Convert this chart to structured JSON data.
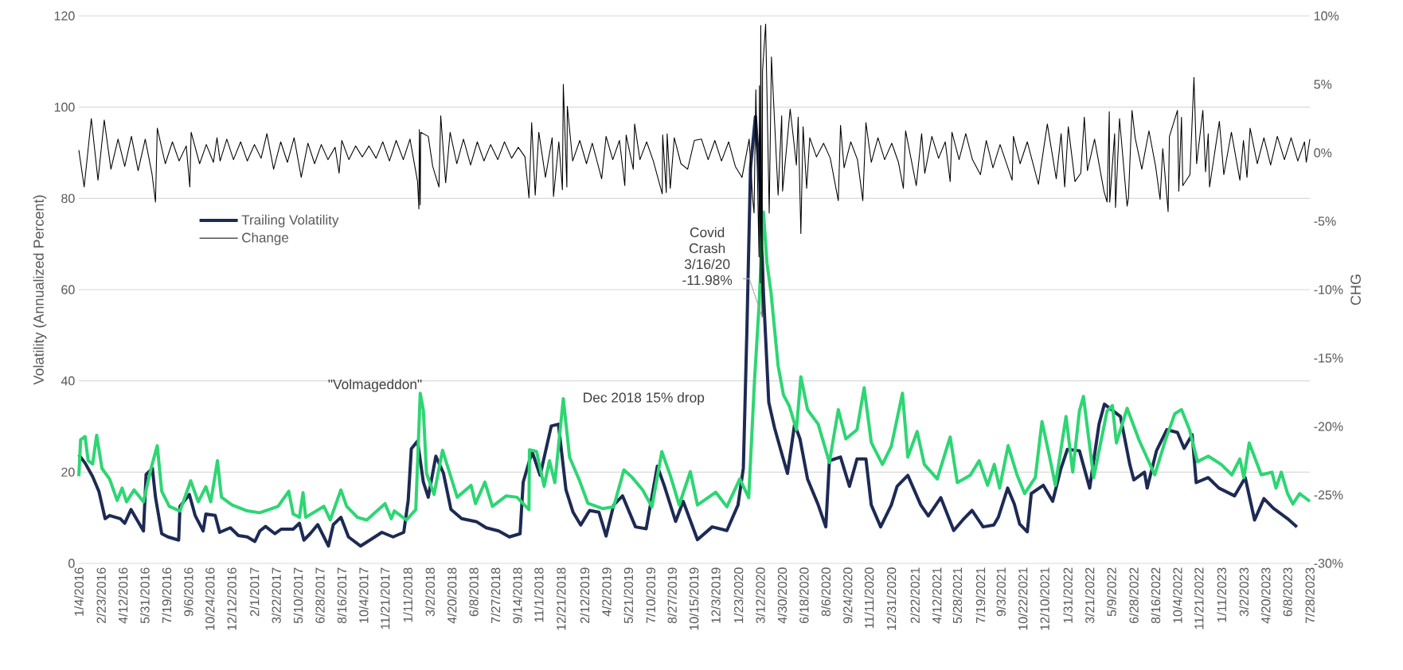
{
  "chart_data": {
    "type": "line",
    "ylabel": "Volatility (Annualized Percent)",
    "y2label": "CHG",
    "xlim": [
      "2016-01-04",
      "2023-07-28"
    ],
    "xticks": [
      {
        "value": "2016-01-04",
        "label": "1/4/2016"
      },
      {
        "value": "2016-02-23",
        "label": "2/23/2016"
      },
      {
        "value": "2016-04-12",
        "label": "4/12/2016"
      },
      {
        "value": "2016-05-31",
        "label": "5/31/2016"
      },
      {
        "value": "2016-07-19",
        "label": "7/19/2016"
      },
      {
        "value": "2016-09-06",
        "label": "9/6/2016"
      },
      {
        "value": "2016-10-24",
        "label": "10/24/2016"
      },
      {
        "value": "2016-12-12",
        "label": "12/12/2016"
      },
      {
        "value": "2017-02-01",
        "label": "2/1/2017"
      },
      {
        "value": "2017-03-22",
        "label": "3/22/2017"
      },
      {
        "value": "2017-05-10",
        "label": "5/10/2017"
      },
      {
        "value": "2017-06-28",
        "label": "6/28/2017"
      },
      {
        "value": "2017-08-16",
        "label": "8/16/2017"
      },
      {
        "value": "2017-10-04",
        "label": "10/4/2017"
      },
      {
        "value": "2017-11-21",
        "label": "11/21/2017"
      },
      {
        "value": "2018-01-11",
        "label": "1/11/2018"
      },
      {
        "value": "2018-03-02",
        "label": "3/2/2018"
      },
      {
        "value": "2018-04-20",
        "label": "4/20/2018"
      },
      {
        "value": "2018-06-08",
        "label": "6/8/2018"
      },
      {
        "value": "2018-07-27",
        "label": "7/27/2018"
      },
      {
        "value": "2018-09-14",
        "label": "9/14/2018"
      },
      {
        "value": "2018-11-01",
        "label": "11/1/2018"
      },
      {
        "value": "2018-12-21",
        "label": "12/21/2018"
      },
      {
        "value": "2019-02-12",
        "label": "2/12/2019"
      },
      {
        "value": "2019-04-02",
        "label": "4/2/2019"
      },
      {
        "value": "2019-05-21",
        "label": "5/21/2019"
      },
      {
        "value": "2019-07-10",
        "label": "7/10/2019"
      },
      {
        "value": "2019-08-27",
        "label": "8/27/2019"
      },
      {
        "value": "2019-10-15",
        "label": "10/15/2019"
      },
      {
        "value": "2019-12-03",
        "label": "12/3/2019"
      },
      {
        "value": "2020-01-23",
        "label": "1/23/2020"
      },
      {
        "value": "2020-03-12",
        "label": "3/12/2020"
      },
      {
        "value": "2020-04-30",
        "label": "4/30/2020"
      },
      {
        "value": "2020-06-18",
        "label": "6/18/2020"
      },
      {
        "value": "2020-08-06",
        "label": "8/6/2020"
      },
      {
        "value": "2020-09-24",
        "label": "9/24/2020"
      },
      {
        "value": "2020-11-11",
        "label": "11/11/2020"
      },
      {
        "value": "2020-12-31",
        "label": "12/31/2020"
      },
      {
        "value": "2021-02-22",
        "label": "2/22/2021"
      },
      {
        "value": "2021-04-12",
        "label": "4/12/2021"
      },
      {
        "value": "2021-05-28",
        "label": "5/28/2021"
      },
      {
        "value": "2021-07-19",
        "label": "7/19/2021"
      },
      {
        "value": "2021-09-03",
        "label": "9/3/2021"
      },
      {
        "value": "2021-10-22",
        "label": "10/22/2021"
      },
      {
        "value": "2021-12-10",
        "label": "12/10/2021"
      },
      {
        "value": "2022-01-31",
        "label": "1/31/2022"
      },
      {
        "value": "2022-03-21",
        "label": "3/21/2022"
      },
      {
        "value": "2022-05-09",
        "label": "5/9/2022"
      },
      {
        "value": "2022-06-28",
        "label": "6/28/2022"
      },
      {
        "value": "2022-08-16",
        "label": "8/16/2022"
      },
      {
        "value": "2022-10-04",
        "label": "10/4/2022"
      },
      {
        "value": "2022-11-21",
        "label": "11/21/2022"
      },
      {
        "value": "2023-01-11",
        "label": "1/11/2023"
      },
      {
        "value": "2023-03-02",
        "label": "3/2/2023"
      },
      {
        "value": "2023-04-20",
        "label": "4/20/2023"
      },
      {
        "value": "2023-06-08",
        "label": "6/8/2023"
      },
      {
        "value": "2023-07-28",
        "label": "7/28/2023"
      }
    ],
    "ylim": [
      0,
      120
    ],
    "yticks": [
      0,
      20,
      40,
      60,
      80,
      100,
      120
    ],
    "y2lim": [
      -30,
      10
    ],
    "y2ticks": [
      {
        "value": -30,
        "label": "-30%"
      },
      {
        "value": -25,
        "label": "-25%"
      },
      {
        "value": -20,
        "label": "-20%"
      },
      {
        "value": -15,
        "label": "-15%"
      },
      {
        "value": -10,
        "label": "-10%"
      },
      {
        "value": -5,
        "label": "-5%"
      },
      {
        "value": 0,
        "label": "0%"
      },
      {
        "value": 5,
        "label": "5%"
      },
      {
        "value": 10,
        "label": "10%"
      }
    ],
    "grid": "y",
    "legend": "left",
    "annotations": [
      {
        "text": "\"Volmageddon\"",
        "x": "2018-02-08",
        "y": 37.3
      },
      {
        "text": "Dec 2018 15% drop",
        "x": "2018-12-26",
        "y": 36.1
      },
      {
        "text": "Covid Crash 3/16/20 -11.98%",
        "x": "2020-03-16",
        "y": 54
      }
    ],
    "series": [
      {
        "name": "Trailing Volatility",
        "color": "#1d2a54",
        "x": [
          "2016-01-04",
          "2016-01-18",
          "2016-02-04",
          "2016-02-18",
          "2016-03-03",
          "2016-03-13",
          "2016-04-06",
          "2016-04-16",
          "2016-04-30",
          "2016-05-28",
          "2016-06-03",
          "2016-06-17",
          "2016-06-24",
          "2016-07-08",
          "2016-07-22",
          "2016-08-15",
          "2016-08-18",
          "2016-09-08",
          "2016-09-21",
          "2016-10-09",
          "2016-10-15",
          "2016-11-05",
          "2016-11-15",
          "2016-12-09",
          "2016-12-27",
          "2017-01-16",
          "2017-02-02",
          "2017-02-13",
          "2017-02-26",
          "2017-03-19",
          "2017-04-02",
          "2017-04-29",
          "2017-05-13",
          "2017-05-23",
          "2017-06-06",
          "2017-06-23",
          "2017-07-17",
          "2017-07-28",
          "2017-08-14",
          "2017-08-31",
          "2017-09-27",
          "2017-10-18",
          "2017-11-14",
          "2017-12-09",
          "2018-01-02",
          "2018-01-12",
          "2018-01-19",
          "2018-02-02",
          "2018-02-15",
          "2018-02-26",
          "2018-03-15",
          "2018-04-01",
          "2018-04-18",
          "2018-05-12",
          "2018-06-15",
          "2018-07-06",
          "2018-08-03",
          "2018-08-27",
          "2018-09-20",
          "2018-09-27",
          "2018-10-17",
          "2018-11-04",
          "2018-11-29",
          "2018-12-15",
          "2019-01-01",
          "2019-01-17",
          "2019-02-03",
          "2019-02-23",
          "2019-03-16",
          "2019-04-01",
          "2019-04-18",
          "2019-05-08",
          "2019-06-06",
          "2019-06-30",
          "2019-07-25",
          "2019-08-10",
          "2019-09-04",
          "2019-09-21",
          "2019-10-23",
          "2019-11-25",
          "2019-12-28",
          "2020-01-22",
          "2020-02-03",
          "2020-02-11",
          "2020-02-19",
          "2020-03-01",
          "2020-03-11",
          "2020-03-19",
          "2020-03-31",
          "2020-04-13",
          "2020-04-29",
          "2020-05-12",
          "2020-05-28",
          "2020-06-09",
          "2020-06-26",
          "2020-07-20",
          "2020-08-06",
          "2020-08-14",
          "2020-09-08",
          "2020-09-28",
          "2020-10-15",
          "2020-11-04",
          "2020-11-16",
          "2020-12-07",
          "2020-12-31",
          "2021-01-13",
          "2021-02-06",
          "2021-03-07",
          "2021-03-24",
          "2021-04-21",
          "2021-05-20",
          "2021-06-10",
          "2021-06-30",
          "2021-07-25",
          "2021-08-18",
          "2021-08-28",
          "2021-09-18",
          "2021-10-03",
          "2021-10-15",
          "2021-11-01",
          "2021-11-10",
          "2021-12-07",
          "2021-12-28",
          "2022-01-15",
          "2022-01-30",
          "2022-02-26",
          "2022-03-21",
          "2022-04-11",
          "2022-04-23",
          "2022-05-05",
          "2022-05-29",
          "2022-06-19",
          "2022-06-28",
          "2022-07-22",
          "2022-07-28",
          "2022-08-18",
          "2022-09-10",
          "2022-10-04",
          "2022-10-19",
          "2022-11-06",
          "2022-11-15",
          "2022-12-12",
          "2023-01-05",
          "2023-02-09",
          "2023-03-05",
          "2023-03-26",
          "2023-04-16",
          "2023-05-07",
          "2023-06-08",
          "2023-06-29"
        ],
        "values": [
          23.8,
          22,
          19,
          15.8,
          9.8,
          10.5,
          9.8,
          8.8,
          11.8,
          7.1,
          19.5,
          20.8,
          14.5,
          6.5,
          5.8,
          5.1,
          12.5,
          15.1,
          10.5,
          7.1,
          10.8,
          10.5,
          6.8,
          7.8,
          6.1,
          5.8,
          4.8,
          7.1,
          8.1,
          6.5,
          7.5,
          7.5,
          8.8,
          5.1,
          6.5,
          8.5,
          3.8,
          8.5,
          10.1,
          5.8,
          3.8,
          5.1,
          6.8,
          5.8,
          6.8,
          13.8,
          25.1,
          26.8,
          17.8,
          14.5,
          23.5,
          19.8,
          11.8,
          9.8,
          9.1,
          7.8,
          7.1,
          5.8,
          6.5,
          17.8,
          24.5,
          19.3,
          30.1,
          30.5,
          16.1,
          11.2,
          8.4,
          11.6,
          11.2,
          6.0,
          12.8,
          14.8,
          8.0,
          7.6,
          21.3,
          16.9,
          9.2,
          13.6,
          5.2,
          8.0,
          7.2,
          12.8,
          20.9,
          51.4,
          86.7,
          97.9,
          83.5,
          59.4,
          35.3,
          29.7,
          24.1,
          19.7,
          30.5,
          27.3,
          18.5,
          12.8,
          8.0,
          22.5,
          23.3,
          16.9,
          22.9,
          22.9,
          12.8,
          8.0,
          12.8,
          16.9,
          19.3,
          12.8,
          10.4,
          14.4,
          7.2,
          9.6,
          11.6,
          8.0,
          8.4,
          10.1,
          16.5,
          13.0,
          8.6,
          6.9,
          15.3,
          17.1,
          13.6,
          20.6,
          25.0,
          24.7,
          16.5,
          30.5,
          34.9,
          34.0,
          32.2,
          21.7,
          18.3,
          20.0,
          16.5,
          24.7,
          29.3,
          28.7,
          25.2,
          28.2,
          17.7,
          18.8,
          16.5,
          14.8,
          18.8,
          9.5,
          14.2,
          12.1,
          9.8,
          8.0
        ]
      },
      {
        "color": "#2dd673",
        "x": [
          "2016-01-04",
          "2016-01-08",
          "2016-01-18",
          "2016-01-25",
          "2016-02-04",
          "2016-02-13",
          "2016-02-25",
          "2016-03-13",
          "2016-03-30",
          "2016-04-10",
          "2016-04-20",
          "2016-05-07",
          "2016-05-28",
          "2016-06-14",
          "2016-06-28",
          "2016-07-08",
          "2016-07-25",
          "2016-08-18",
          "2016-09-11",
          "2016-09-28",
          "2016-10-15",
          "2016-10-26",
          "2016-11-10",
          "2016-11-19",
          "2016-12-13",
          "2017-01-16",
          "2017-02-13",
          "2017-03-26",
          "2017-04-19",
          "2017-04-29",
          "2017-05-13",
          "2017-05-21",
          "2017-05-27",
          "2017-07-07",
          "2017-07-21",
          "2017-08-14",
          "2017-08-27",
          "2017-09-20",
          "2017-10-11",
          "2017-11-21",
          "2017-12-05",
          "2017-12-12",
          "2018-01-08",
          "2018-01-29",
          "2018-02-08",
          "2018-02-15",
          "2018-02-22",
          "2018-03-11",
          "2018-03-30",
          "2018-04-15",
          "2018-05-02",
          "2018-06-02",
          "2018-06-12",
          "2018-07-03",
          "2018-07-20",
          "2018-08-20",
          "2018-09-13",
          "2018-10-10",
          "2018-10-11",
          "2018-10-27",
          "2018-11-13",
          "2018-11-25",
          "2018-12-07",
          "2018-12-26",
          "2019-01-09",
          "2019-01-30",
          "2019-02-19",
          "2019-03-24",
          "2019-04-18",
          "2019-05-11",
          "2019-05-29",
          "2019-06-22",
          "2019-07-13",
          "2019-08-04",
          "2019-08-23",
          "2019-09-12",
          "2019-10-07",
          "2019-10-23",
          "2019-12-03",
          "2019-12-28",
          "2020-01-26",
          "2020-02-15",
          "2020-02-28",
          "2020-03-09",
          "2020-03-19",
          "2020-03-27",
          "2020-04-05",
          "2020-04-21",
          "2020-05-03",
          "2020-05-16",
          "2020-06-01",
          "2020-06-11",
          "2020-06-26",
          "2020-07-20",
          "2020-08-14",
          "2020-09-03",
          "2020-09-20",
          "2020-10-15",
          "2020-10-31",
          "2020-11-16",
          "2020-12-11",
          "2020-12-31",
          "2021-01-25",
          "2021-02-06",
          "2021-02-27",
          "2021-03-15",
          "2021-04-13",
          "2021-05-12",
          "2021-05-28",
          "2021-06-26",
          "2021-07-16",
          "2021-08-04",
          "2021-08-19",
          "2021-08-31",
          "2021-09-19",
          "2021-10-09",
          "2021-10-26",
          "2021-11-19",
          "2021-12-04",
          "2021-12-22",
          "2022-01-03",
          "2022-01-27",
          "2022-02-11",
          "2022-02-26",
          "2022-03-07",
          "2022-03-30",
          "2022-04-29",
          "2022-05-11",
          "2022-05-20",
          "2022-06-13",
          "2022-07-10",
          "2022-08-14",
          "2022-09-07",
          "2022-09-28",
          "2022-10-13",
          "2022-10-31",
          "2022-11-18",
          "2022-12-12",
          "2023-01-10",
          "2023-02-03",
          "2023-02-21",
          "2023-03-02",
          "2023-03-14",
          "2023-04-10",
          "2023-05-04",
          "2023-05-13",
          "2023-05-25",
          "2023-06-08",
          "2023-06-20",
          "2023-07-05",
          "2023-07-28"
        ],
        "values": [
          19.1,
          27.1,
          27.8,
          22.5,
          21.8,
          28.1,
          20.8,
          18.5,
          13.8,
          16.5,
          13.5,
          16.1,
          13.5,
          20.8,
          25.8,
          15.8,
          12.5,
          11.5,
          18.1,
          13.5,
          16.8,
          13.5,
          22.5,
          14.5,
          12.8,
          11.5,
          11.1,
          12.5,
          15.8,
          10.8,
          10.1,
          15.5,
          10.1,
          12.5,
          9.5,
          16.1,
          12.5,
          10.1,
          9.5,
          13.1,
          9.8,
          11.5,
          9.5,
          11.8,
          37.3,
          33.5,
          19.8,
          15.1,
          24.8,
          19.8,
          14.5,
          17.1,
          13.1,
          17.8,
          12.5,
          14.8,
          14.5,
          11.8,
          24.9,
          24.5,
          16.9,
          22.5,
          17.7,
          36.1,
          23.3,
          18.5,
          13.2,
          12.0,
          12.4,
          20.5,
          18.9,
          16.1,
          12.4,
          24.5,
          19.3,
          12.8,
          20.1,
          12.8,
          15.6,
          12.4,
          18.5,
          14.4,
          40.1,
          56.2,
          77.0,
          65.8,
          59.4,
          43.3,
          36.9,
          34.5,
          29.3,
          40.9,
          33.7,
          30.5,
          22.1,
          33.7,
          27.3,
          29.3,
          38.5,
          26.5,
          21.7,
          25.7,
          37.3,
          23.3,
          28.9,
          21.7,
          18.5,
          27.7,
          17.7,
          19.3,
          22.5,
          17.1,
          21.7,
          16.5,
          25.8,
          19.4,
          15.3,
          18.8,
          31.1,
          22.9,
          17.1,
          32.2,
          20.0,
          33.4,
          36.6,
          18.8,
          33.4,
          34.6,
          26.4,
          34.0,
          27.0,
          19.4,
          27.0,
          32.8,
          33.7,
          29.3,
          22.3,
          23.5,
          21.7,
          19.4,
          22.9,
          18.8,
          26.4,
          19.4,
          20.0,
          16.5,
          20.0,
          15.3,
          13.0,
          15.3,
          13.6
        ]
      },
      {
        "name": "Change",
        "color": "#000000",
        "axis": "y2",
        "x": [
          "2016-01-04",
          "2016-01-16",
          "2016-02-01",
          "2016-02-16",
          "2016-03-01",
          "2016-03-16",
          "2016-04-01",
          "2016-04-16",
          "2016-05-01",
          "2016-05-16",
          "2016-06-01",
          "2016-06-16",
          "2016-06-24",
          "2016-06-28",
          "2016-07-16",
          "2016-08-01",
          "2016-08-16",
          "2016-09-01",
          "2016-09-09",
          "2016-09-12",
          "2016-10-01",
          "2016-10-16",
          "2016-11-01",
          "2016-11-09",
          "2016-11-16",
          "2016-12-01",
          "2016-12-16",
          "2017-01-01",
          "2017-01-16",
          "2017-02-01",
          "2017-02-16",
          "2017-03-01",
          "2017-03-16",
          "2017-04-01",
          "2017-04-16",
          "2017-05-01",
          "2017-05-17",
          "2017-06-01",
          "2017-06-16",
          "2017-07-01",
          "2017-07-16",
          "2017-08-01",
          "2017-08-10",
          "2017-08-16",
          "2017-09-01",
          "2017-09-16",
          "2017-10-01",
          "2017-10-16",
          "2017-11-01",
          "2017-11-16",
          "2017-12-01",
          "2017-12-16",
          "2018-01-01",
          "2018-01-16",
          "2018-02-02",
          "2018-02-05",
          "2018-02-06",
          "2018-02-08",
          "2018-02-09",
          "2018-02-26",
          "2018-03-08",
          "2018-03-22",
          "2018-03-26",
          "2018-04-06",
          "2018-04-16",
          "2018-05-01",
          "2018-05-16",
          "2018-06-01",
          "2018-06-16",
          "2018-07-01",
          "2018-07-16",
          "2018-08-01",
          "2018-08-16",
          "2018-09-01",
          "2018-09-16",
          "2018-10-01",
          "2018-10-10",
          "2018-10-16",
          "2018-10-24",
          "2018-11-01",
          "2018-11-16",
          "2018-12-01",
          "2018-12-04",
          "2018-12-16",
          "2018-12-24",
          "2018-12-26",
          "2019-01-03",
          "2019-01-04",
          "2019-01-16",
          "2019-02-01",
          "2019-02-16",
          "2019-03-01",
          "2019-03-22",
          "2019-04-01",
          "2019-04-16",
          "2019-05-01",
          "2019-05-13",
          "2019-05-16",
          "2019-06-01",
          "2019-06-04",
          "2019-06-16",
          "2019-07-01",
          "2019-07-16",
          "2019-08-05",
          "2019-08-06",
          "2019-08-14",
          "2019-08-16",
          "2019-08-23",
          "2019-09-01",
          "2019-09-16",
          "2019-10-01",
          "2019-10-16",
          "2019-11-01",
          "2019-11-16",
          "2019-12-01",
          "2019-12-16",
          "2020-01-01",
          "2020-01-16",
          "2020-01-31",
          "2020-02-16",
          "2020-02-24",
          "2020-02-27",
          "2020-03-02",
          "2020-03-09",
          "2020-03-10",
          "2020-03-12",
          "2020-03-13",
          "2020-03-16",
          "2020-03-17",
          "2020-03-24",
          "2020-04-01",
          "2020-04-06",
          "2020-04-21",
          "2020-04-29",
          "2020-05-01",
          "2020-05-18",
          "2020-06-01",
          "2020-06-05",
          "2020-06-11",
          "2020-06-16",
          "2020-06-24",
          "2020-07-01",
          "2020-07-16",
          "2020-08-01",
          "2020-08-16",
          "2020-09-03",
          "2020-09-08",
          "2020-09-16",
          "2020-10-01",
          "2020-10-16",
          "2020-10-28",
          "2020-11-04",
          "2020-11-16",
          "2020-12-01",
          "2020-12-16",
          "2021-01-01",
          "2021-01-16",
          "2021-01-27",
          "2021-02-01",
          "2021-02-25",
          "2021-03-09",
          "2021-03-16",
          "2021-04-01",
          "2021-04-16",
          "2021-05-01",
          "2021-05-12",
          "2021-05-16",
          "2021-06-01",
          "2021-06-16",
          "2021-07-01",
          "2021-07-19",
          "2021-08-01",
          "2021-08-16",
          "2021-09-01",
          "2021-09-28",
          "2021-10-01",
          "2021-10-16",
          "2021-11-01",
          "2021-11-26",
          "2021-12-01",
          "2021-12-16",
          "2022-01-05",
          "2022-01-16",
          "2022-01-24",
          "2022-02-01",
          "2022-02-16",
          "2022-03-01",
          "2022-03-09",
          "2022-03-16",
          "2022-04-01",
          "2022-04-22",
          "2022-04-29",
          "2022-05-04",
          "2022-05-05",
          "2022-05-16",
          "2022-05-18",
          "2022-05-27",
          "2022-06-13",
          "2022-06-16",
          "2022-06-24",
          "2022-07-01",
          "2022-07-16",
          "2022-08-01",
          "2022-08-16",
          "2022-08-26",
          "2022-09-01",
          "2022-09-13",
          "2022-09-16",
          "2022-10-04",
          "2022-10-07",
          "2022-10-13",
          "2022-10-16",
          "2022-11-01",
          "2022-11-10",
          "2022-11-16",
          "2022-11-30",
          "2022-12-06",
          "2022-12-12",
          "2022-12-15",
          "2023-01-06",
          "2023-01-16",
          "2023-02-02",
          "2023-02-21",
          "2023-03-01",
          "2023-03-09",
          "2023-03-16",
          "2023-04-01",
          "2023-04-16",
          "2023-05-01",
          "2023-05-16",
          "2023-06-01",
          "2023-06-16",
          "2023-07-01",
          "2023-07-16",
          "2023-07-20",
          "2023-07-28"
        ],
        "values": [
          0.2,
          -2.5,
          2.5,
          -2.0,
          2.4,
          -1.2,
          1.0,
          -1.0,
          1.2,
          -1.3,
          1.0,
          -1.5,
          -3.6,
          1.8,
          -0.8,
          0.8,
          -0.6,
          0.5,
          -2.5,
          1.5,
          -0.8,
          0.6,
          -0.7,
          1.1,
          -0.6,
          1.0,
          -0.5,
          0.8,
          -0.6,
          0.6,
          -0.4,
          1.4,
          -1.2,
          0.8,
          -0.7,
          1.1,
          -1.8,
          0.7,
          -0.8,
          0.6,
          -0.5,
          0.4,
          -1.5,
          0.9,
          -0.5,
          0.5,
          -0.3,
          0.5,
          -0.4,
          0.8,
          -0.6,
          0.9,
          -0.5,
          1.0,
          -2.1,
          -4.1,
          1.7,
          -3.8,
          1.5,
          1.2,
          -1.0,
          -2.5,
          2.7,
          -2.2,
          1.5,
          -0.8,
          1.0,
          -0.9,
          0.8,
          -0.6,
          0.6,
          -0.5,
          0.8,
          -0.4,
          0.4,
          -0.3,
          -3.3,
          2.2,
          -3.1,
          1.5,
          -1.8,
          1.1,
          -3.2,
          0.8,
          -2.7,
          5.0,
          -2.5,
          3.4,
          -0.6,
          0.9,
          -0.8,
          0.7,
          -1.9,
          1.2,
          -0.5,
          0.9,
          -2.4,
          1.3,
          -1.2,
          2.1,
          -0.5,
          0.8,
          -0.6,
          -3.0,
          1.3,
          -2.9,
          1.4,
          -2.6,
          1.1,
          -0.8,
          -1.2,
          0.9,
          1.0,
          -0.5,
          0.9,
          -0.6,
          0.8,
          -1.0,
          -1.8,
          1.0,
          -3.4,
          -4.4,
          4.6,
          -7.6,
          4.9,
          -9.5,
          9.3,
          -11.98,
          6.0,
          9.4,
          -4.4,
          7.0,
          -3.1,
          2.7,
          -2.8,
          3.2,
          -0.9,
          2.6,
          -5.9,
          1.9,
          -2.6,
          1.1,
          -0.3,
          0.7,
          -0.4,
          -3.5,
          2.0,
          -1.1,
          0.8,
          -0.5,
          -3.5,
          2.2,
          -0.7,
          1.1,
          -0.5,
          0.7,
          -0.7,
          -2.6,
          1.6,
          -2.4,
          1.4,
          -1.5,
          1.2,
          -0.4,
          0.8,
          -2.1,
          1.5,
          -0.5,
          1.4,
          -0.5,
          -1.6,
          0.9,
          -1.1,
          0.6,
          -2.0,
          1.2,
          -0.8,
          0.8,
          -2.3,
          -1.2,
          2.1,
          -1.9,
          1.4,
          -2.5,
          1.9,
          -2.1,
          -1.5,
          2.6,
          -1.3,
          1.0,
          -2.8,
          -3.6,
          3.0,
          -3.6,
          1.4,
          -4.0,
          2.5,
          -3.9,
          -3.3,
          3.1,
          1.1,
          -1.2,
          1.6,
          -1.0,
          -3.4,
          0.3,
          -4.3,
          1.2,
          3.1,
          -2.8,
          2.6,
          -2.4,
          -1.6,
          5.5,
          -0.8,
          3.1,
          -1.4,
          1.4,
          -2.5,
          2.3,
          -1.6,
          1.5,
          -2.0,
          0.9,
          -1.8,
          1.8,
          -0.8,
          1.1,
          -0.9,
          1.2,
          -0.5,
          1.1,
          -0.6,
          0.8,
          -0.7,
          1.0
        ]
      }
    ]
  }
}
